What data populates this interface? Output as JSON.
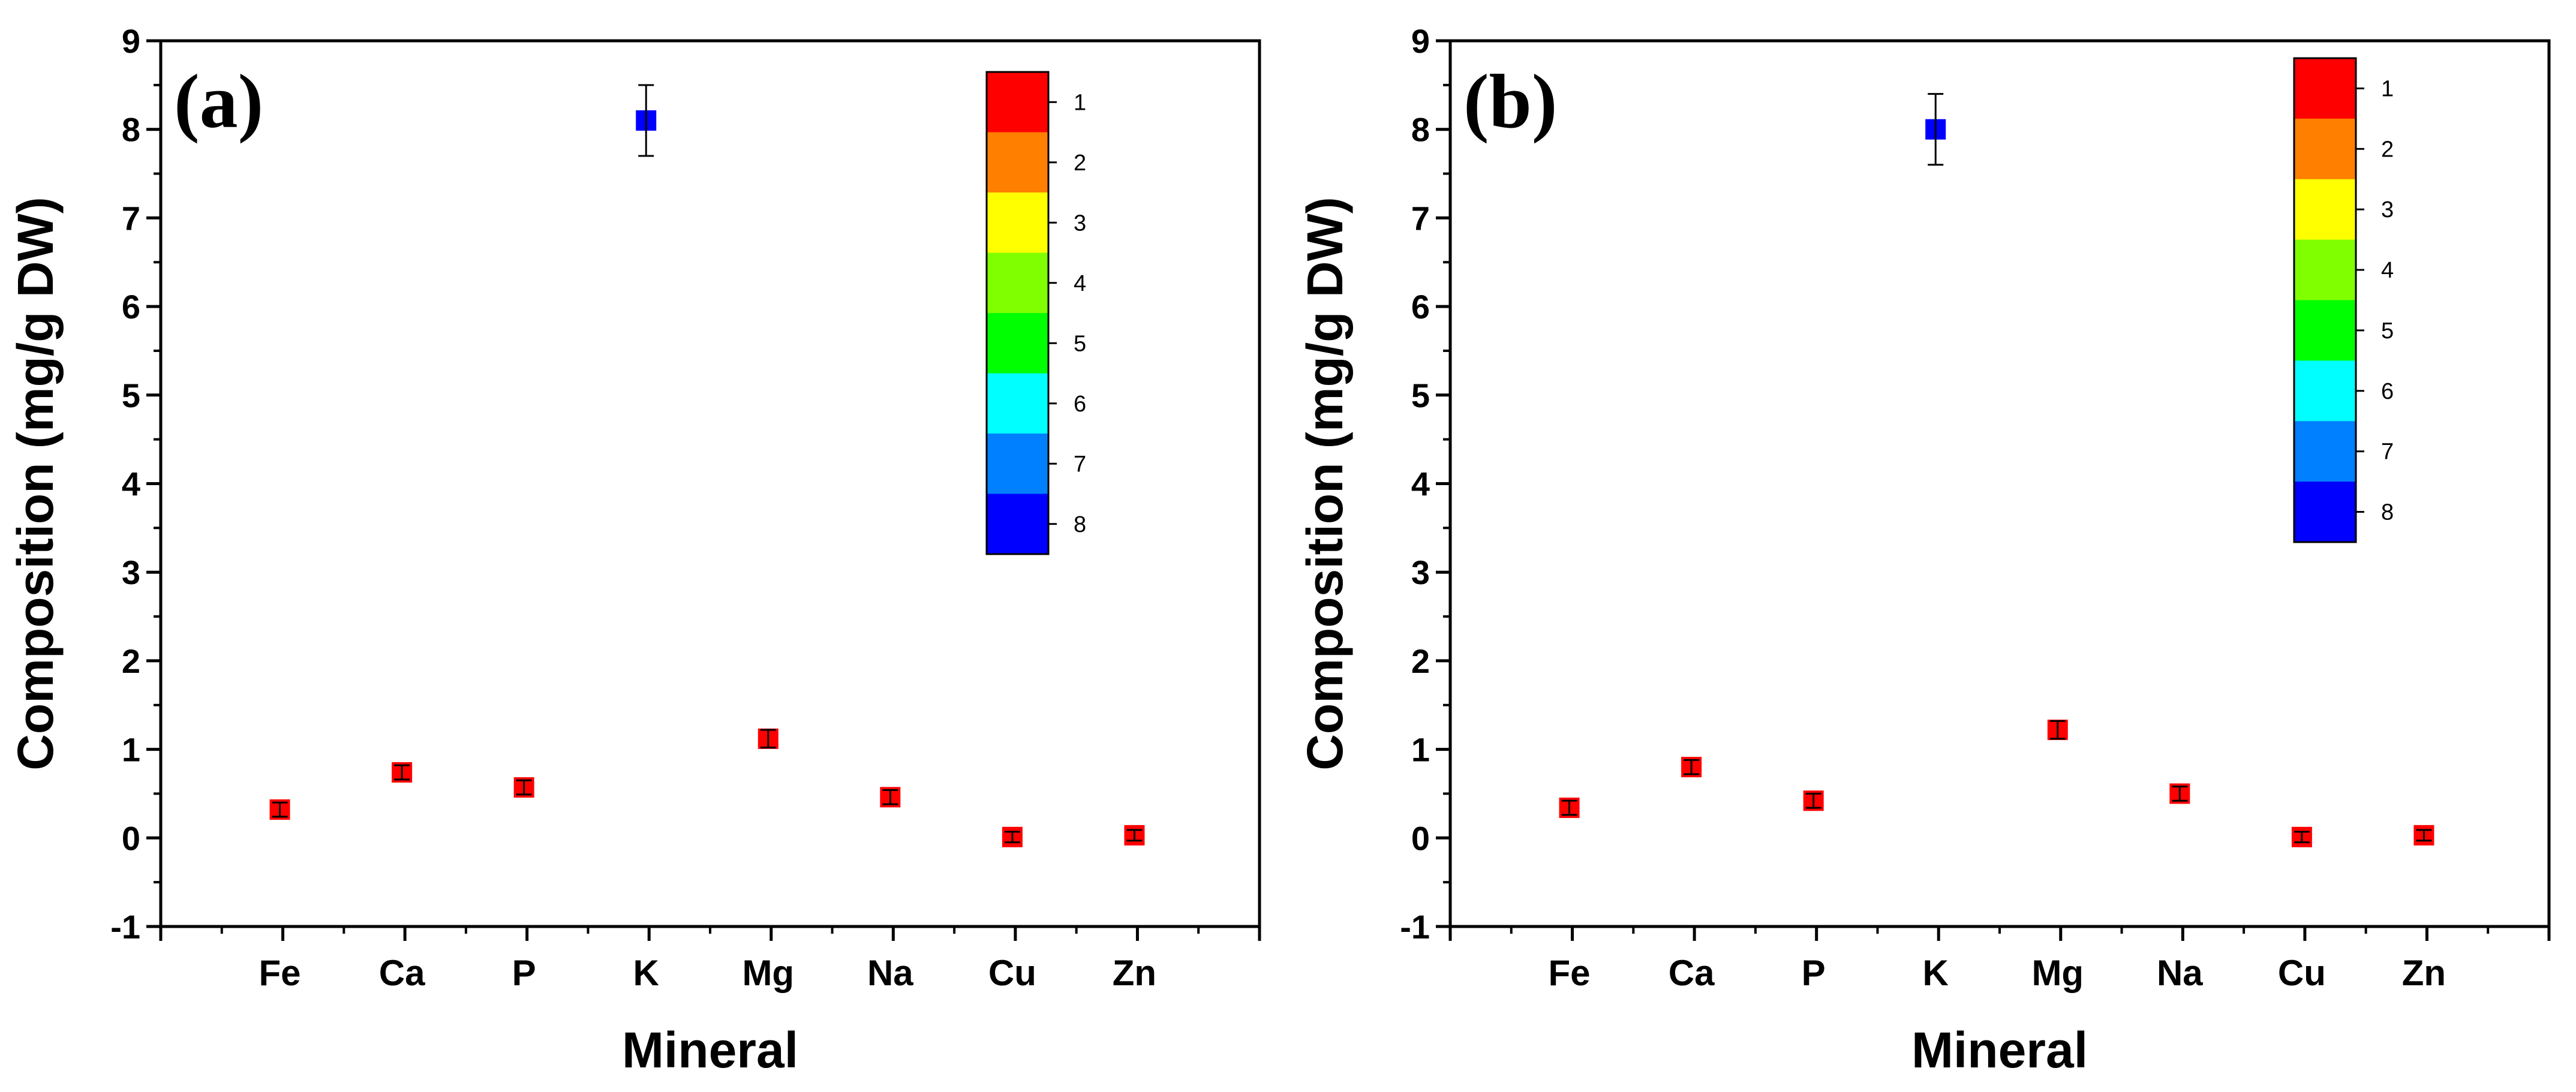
{
  "chart_data": [
    {
      "type": "scatter",
      "panel_label": "(a)",
      "xlabel": "Mineral",
      "ylabel": "Composition (mg/g DW)",
      "categories": [
        "Fe",
        "Ca",
        "P",
        "K",
        "Mg",
        "Na",
        "Cu",
        "Zn"
      ],
      "values": [
        0.32,
        0.74,
        0.57,
        8.1,
        1.12,
        0.46,
        0.01,
        0.03
      ],
      "errors": [
        0.08,
        0.08,
        0.08,
        0.4,
        0.1,
        0.08,
        0.06,
        0.06
      ],
      "ylim": [
        -1,
        9
      ],
      "yticks": [
        -1,
        0,
        1,
        2,
        3,
        4,
        5,
        6,
        7,
        8,
        9
      ],
      "colorbar": {
        "labels": [
          "1",
          "2",
          "3",
          "4",
          "5",
          "6",
          "7",
          "8"
        ],
        "colors": [
          "#ff0000",
          "#ff7f00",
          "#ffff00",
          "#80ff00",
          "#00ff00",
          "#00ffff",
          "#0080ff",
          "#0000ff"
        ]
      }
    },
    {
      "type": "scatter",
      "panel_label": "(b)",
      "xlabel": "Mineral",
      "ylabel": "Composition (mg/g DW)",
      "categories": [
        "Fe",
        "Ca",
        "P",
        "K",
        "Mg",
        "Na",
        "Cu",
        "Zn"
      ],
      "values": [
        0.34,
        0.8,
        0.42,
        8.0,
        1.22,
        0.5,
        0.01,
        0.03
      ],
      "errors": [
        0.08,
        0.08,
        0.08,
        0.4,
        0.1,
        0.08,
        0.06,
        0.06
      ],
      "ylim": [
        -1,
        9
      ],
      "yticks": [
        -1,
        0,
        1,
        2,
        3,
        4,
        5,
        6,
        7,
        8,
        9
      ],
      "colorbar": {
        "labels": [
          "1",
          "2",
          "3",
          "4",
          "5",
          "6",
          "7",
          "8"
        ],
        "colors": [
          "#ff0000",
          "#ff7f00",
          "#ffff00",
          "#80ff00",
          "#00ff00",
          "#00ffff",
          "#0080ff",
          "#0000ff"
        ]
      }
    }
  ]
}
